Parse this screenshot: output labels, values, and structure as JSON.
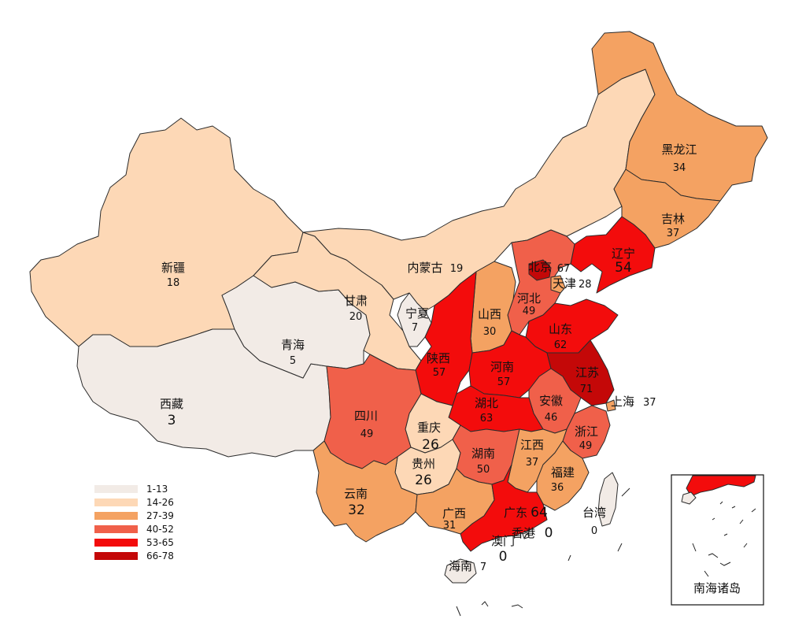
{
  "colors": {
    "bin_1_13": "#f2ebe6",
    "bin_14_26": "#fdd8b6",
    "bin_27_39": "#f4a262",
    "bin_40_52": "#f0604a",
    "bin_53_65": "#f30c0c",
    "bin_66_78": "#c40808",
    "border": "#2b2b2b",
    "background": "#ffffff"
  },
  "legend": {
    "items": [
      {
        "label": "1-13",
        "color": "#f2ebe6"
      },
      {
        "label": "14-26",
        "color": "#fdd8b6"
      },
      {
        "label": "27-39",
        "color": "#f4a262"
      },
      {
        "label": "40-52",
        "color": "#f0604a"
      },
      {
        "label": "53-65",
        "color": "#f30c0c"
      },
      {
        "label": "66-78",
        "color": "#c40808"
      }
    ]
  },
  "inset": {
    "label": "南海诸岛"
  },
  "provinces": [
    {
      "name": "新疆",
      "value": "18"
    },
    {
      "name": "西藏",
      "value": "3"
    },
    {
      "name": "青海",
      "value": "5"
    },
    {
      "name": "甘肃",
      "value": "20"
    },
    {
      "name": "内蒙古",
      "value": "19"
    },
    {
      "name": "宁夏",
      "value": "7"
    },
    {
      "name": "黑龙江",
      "value": "34"
    },
    {
      "name": "吉林",
      "value": "37"
    },
    {
      "name": "辽宁",
      "value": "54"
    },
    {
      "name": "北京",
      "value": "67"
    },
    {
      "name": "天津",
      "value": "28"
    },
    {
      "name": "河北",
      "value": "49"
    },
    {
      "name": "山西",
      "value": "30"
    },
    {
      "name": "山东",
      "value": "62"
    },
    {
      "name": "陕西",
      "value": "57"
    },
    {
      "name": "河南",
      "value": "57"
    },
    {
      "name": "江苏",
      "value": "71"
    },
    {
      "name": "上海",
      "value": "37"
    },
    {
      "name": "安徽",
      "value": "46"
    },
    {
      "name": "湖北",
      "value": "63"
    },
    {
      "name": "四川",
      "value": "49"
    },
    {
      "name": "重庆",
      "value": "26"
    },
    {
      "name": "浙江",
      "value": "49"
    },
    {
      "name": "贵州",
      "value": "26"
    },
    {
      "name": "湖南",
      "value": "50"
    },
    {
      "name": "江西",
      "value": "37"
    },
    {
      "name": "福建",
      "value": "36"
    },
    {
      "name": "云南",
      "value": "32"
    },
    {
      "name": "广西",
      "value": "31"
    },
    {
      "name": "广东",
      "value": "64"
    },
    {
      "name": "台湾",
      "value": "0"
    },
    {
      "name": "香港",
      "value": "0"
    },
    {
      "name": "澳门",
      "value": "0"
    },
    {
      "name": "海南",
      "value": "7"
    }
  ]
}
